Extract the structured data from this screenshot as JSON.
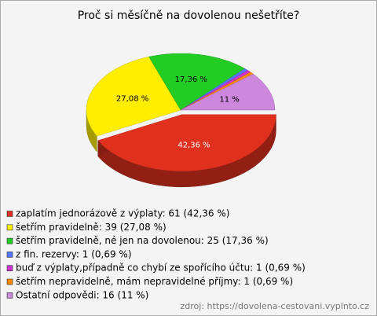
{
  "chart_data": {
    "type": "pie",
    "title": "Proč si měsíčně na dovolenou nešetříte?",
    "categories": [
      "zaplatím jednorázově z výplaty: 61 (42,36 %)",
      "šetřím pravidelně: 39 (27,08 %)",
      "šetřím pravidelně, né jen na dovolenou: 25 (17,36 %)",
      "z fin. rezervy: 1 (0,69 %)",
      "buď z výplaty,případně co chybí ze spořícího účtu: 1 (0,69 %)",
      "šetřím nepravidelně, mám nepravidelné příjmy: 1 (0,69 %)",
      "Ostatní odpovědi: 16 (11 %)"
    ],
    "values": [
      42.36,
      27.08,
      17.36,
      0.69,
      0.69,
      0.69,
      11
    ],
    "value_labels": [
      "42,36 %",
      "27,08 %",
      "17,36 %",
      null,
      null,
      null,
      "11 %"
    ],
    "colors": [
      "#e0301e",
      "#ffee00",
      "#22cc22",
      "#5577ff",
      "#cc33cc",
      "#ff8800",
      "#cc88dd"
    ],
    "source": "zdroj: https://dovolena-cestovani.vyplnto.cz"
  }
}
